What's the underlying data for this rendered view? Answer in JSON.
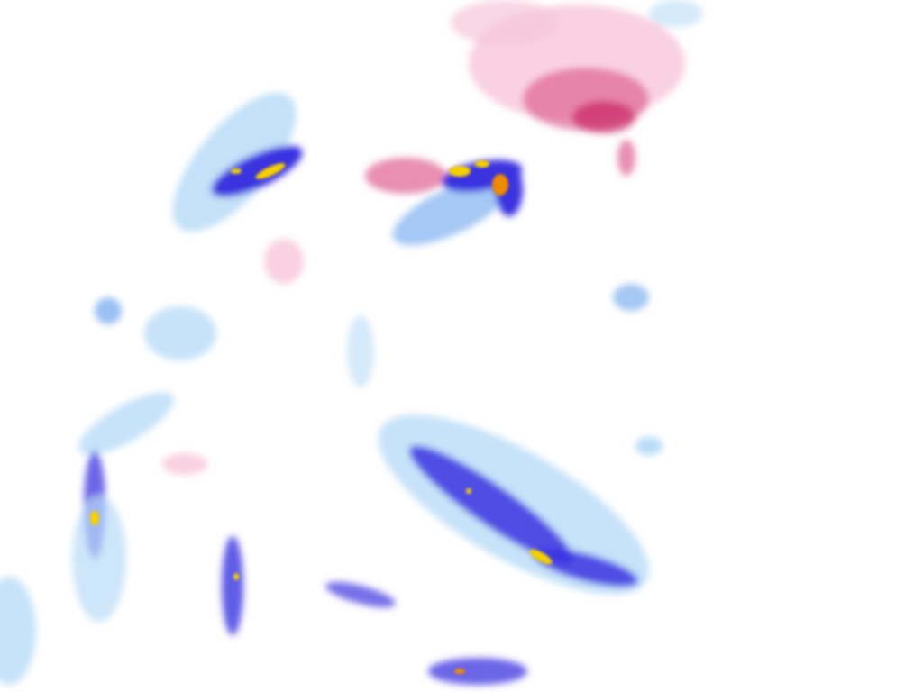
{
  "map": {
    "layer": "precipitation-radar",
    "colors": {
      "rain_light": "#b9dcf7",
      "rain_moderate": "#7fb0f0",
      "rain_heavy": "#3a32e0",
      "rain_intense": "#f5d000",
      "rain_extreme": "#f08a00",
      "snow_light": "#f7c6da",
      "snow_heavy": "#d8467e",
      "snow_intense": "#c4145a"
    }
  }
}
